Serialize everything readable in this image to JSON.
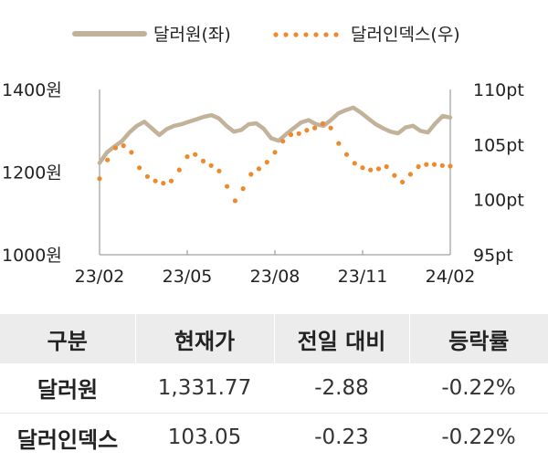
{
  "chart_data": {
    "type": "line",
    "legend_position": "top",
    "x_ticks": [
      "23/02",
      "23/05",
      "23/08",
      "23/11",
      "24/02"
    ],
    "y_left": {
      "min": 1000,
      "max": 1400,
      "ticks": [
        "1400원",
        "1200원",
        "1000원"
      ]
    },
    "y_right": {
      "min": 95,
      "max": 110,
      "ticks": [
        "110pt",
        "105pt",
        "100pt",
        "95pt"
      ]
    },
    "series": [
      {
        "name": "달러원(좌)",
        "axis": "left",
        "style": "solid",
        "color": "#c2b29a",
        "values": [
          1222,
          1248,
          1262,
          1275,
          1296,
          1312,
          1322,
          1306,
          1290,
          1304,
          1312,
          1316,
          1322,
          1328,
          1334,
          1338,
          1330,
          1312,
          1298,
          1302,
          1316,
          1318,
          1305,
          1282,
          1276,
          1292,
          1306,
          1320,
          1326,
          1316,
          1312,
          1326,
          1342,
          1350,
          1356,
          1344,
          1330,
          1316,
          1306,
          1298,
          1294,
          1308,
          1312,
          1300,
          1296,
          1318,
          1336,
          1332
        ]
      },
      {
        "name": "달러인덱스(우)",
        "axis": "right",
        "style": "dotted",
        "color": "#ee8a2c",
        "values": [
          101.9,
          103.6,
          104.7,
          104.9,
          104.3,
          102.9,
          102.1,
          101.7,
          101.5,
          101.7,
          102.7,
          103.9,
          104.1,
          103.5,
          103.1,
          102.6,
          101.2,
          99.9,
          101.0,
          102.3,
          102.8,
          103.4,
          104.3,
          105.3,
          105.9,
          106.0,
          106.3,
          106.5,
          106.9,
          106.5,
          105.1,
          104.1,
          103.3,
          102.9,
          102.7,
          102.8,
          103.0,
          102.2,
          101.6,
          102.3,
          103.0,
          103.2,
          103.2,
          103.1,
          103.05
        ]
      }
    ]
  },
  "table": {
    "headers": [
      "구분",
      "현재가",
      "전일 대비",
      "등락률"
    ],
    "rows": [
      [
        "달러원",
        "1,331.77",
        "-2.88",
        "-0.22%"
      ],
      [
        "달러인덱스",
        "103.05",
        "-0.23",
        "-0.22%"
      ]
    ]
  }
}
